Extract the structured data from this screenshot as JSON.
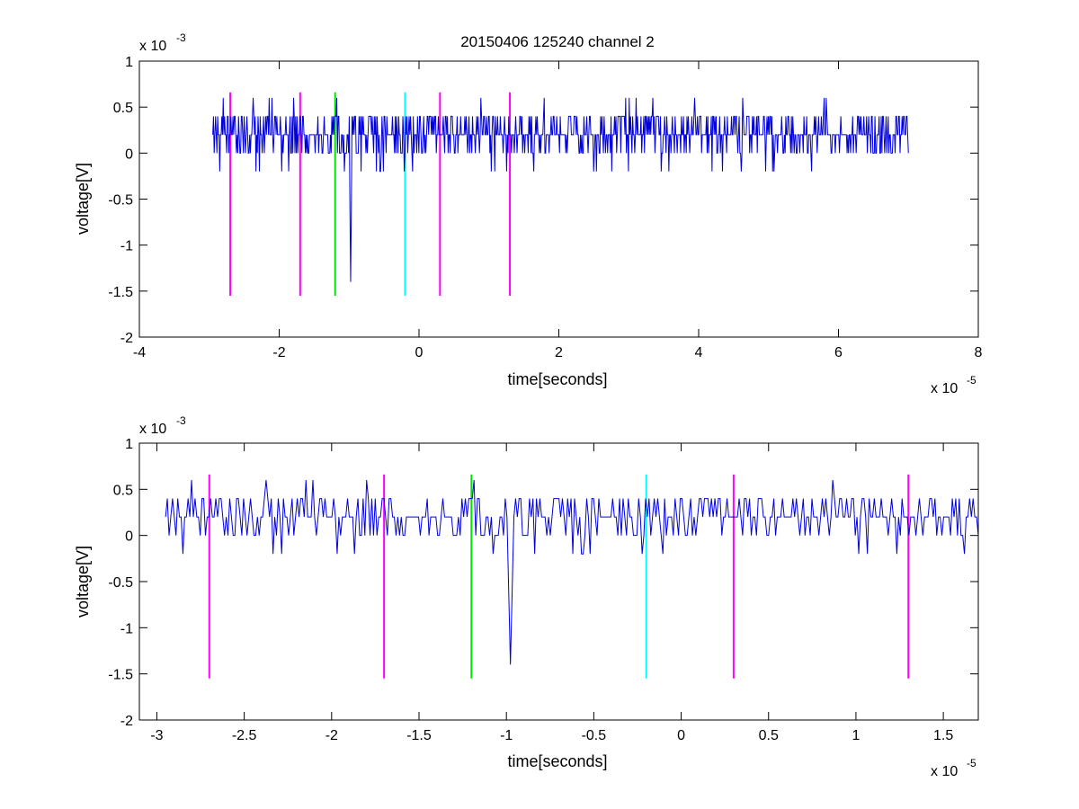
{
  "title": "20150406 125240 channel 2",
  "colors": {
    "signal": "#0000dd",
    "magenta": "#ff00ff",
    "green": "#00e600",
    "cyan": "#00ffff"
  },
  "chart_data": [
    {
      "type": "line",
      "title": "20150406 125240 channel 2",
      "xlabel": "time[seconds]",
      "ylabel": "voltage[V]",
      "x_exponent_label": "x 10",
      "x_exponent": "-5",
      "y_exponent_label": "x 10",
      "y_exponent": "-3",
      "xlim": [
        -4e-05,
        8e-05
      ],
      "ylim": [
        -0.002,
        0.001
      ],
      "x_ticks": [
        -4e-05,
        -2e-05,
        0,
        2e-05,
        4e-05,
        6e-05,
        8e-05
      ],
      "x_tick_labels": [
        "-4",
        "-2",
        "0",
        "2",
        "4",
        "6",
        "8"
      ],
      "y_ticks": [
        -0.002,
        -0.0015,
        -0.001,
        -0.0005,
        0,
        0.0005,
        0.001
      ],
      "y_tick_labels": [
        "-2",
        "-1.5",
        "-1",
        "-0.5",
        "0",
        "0.5",
        "1"
      ],
      "grid": false,
      "signal": {
        "x_start": -2.95e-05,
        "x_end": 7e-05,
        "baseline": 0.0002,
        "quantum": 0.0002,
        "samples": 1000,
        "spike_at": -9.8e-06,
        "spike_min": -0.0014
      },
      "markers": [
        {
          "x": -2.7e-05,
          "color": "magenta",
          "y_from": -0.00155,
          "y_to": 0.00066
        },
        {
          "x": -1.7e-05,
          "color": "magenta",
          "y_from": -0.00155,
          "y_to": 0.00066
        },
        {
          "x": -1.2e-05,
          "color": "green",
          "y_from": -0.00155,
          "y_to": 0.00066
        },
        {
          "x": -2e-06,
          "color": "cyan",
          "y_from": -0.00155,
          "y_to": 0.00066
        },
        {
          "x": 3e-06,
          "color": "magenta",
          "y_from": -0.00155,
          "y_to": 0.00066
        },
        {
          "x": 1.3e-05,
          "color": "magenta",
          "y_from": -0.00155,
          "y_to": 0.00066
        }
      ]
    },
    {
      "type": "line",
      "xlabel": "time[seconds]",
      "ylabel": "voltage[V]",
      "x_exponent_label": "x 10",
      "x_exponent": "-5",
      "y_exponent_label": "x 10",
      "y_exponent": "-3",
      "xlim": [
        -3.1e-05,
        1.7e-05
      ],
      "ylim": [
        -0.002,
        0.001
      ],
      "x_ticks": [
        -3e-05,
        -2.5e-05,
        -2e-05,
        -1.5e-05,
        -1e-05,
        -5e-06,
        0,
        5e-06,
        1e-05,
        1.5e-05
      ],
      "x_tick_labels": [
        "-3",
        "-2.5",
        "-2",
        "-1.5",
        "-1",
        "-0.5",
        "0",
        "0.5",
        "1",
        "1.5"
      ],
      "y_ticks": [
        -0.002,
        -0.0015,
        -0.001,
        -0.0005,
        0,
        0.0005,
        0.001
      ],
      "y_tick_labels": [
        "-2",
        "-1.5",
        "-1",
        "-0.5",
        "0",
        "0.5",
        "1"
      ],
      "grid": false,
      "signal": {
        "x_start": -2.95e-05,
        "x_end": 1.7e-05,
        "baseline": 0.0002,
        "quantum": 0.0002,
        "samples": 470,
        "spike_at": -9.8e-06,
        "spike_min": -0.0014
      },
      "markers": [
        {
          "x": -2.7e-05,
          "color": "magenta",
          "y_from": -0.00155,
          "y_to": 0.00066
        },
        {
          "x": -1.7e-05,
          "color": "magenta",
          "y_from": -0.00155,
          "y_to": 0.00066
        },
        {
          "x": -1.2e-05,
          "color": "green",
          "y_from": -0.00155,
          "y_to": 0.00066
        },
        {
          "x": -2e-06,
          "color": "cyan",
          "y_from": -0.00155,
          "y_to": 0.00066
        },
        {
          "x": 3e-06,
          "color": "magenta",
          "y_from": -0.00155,
          "y_to": 0.00066
        },
        {
          "x": 1.3e-05,
          "color": "magenta",
          "y_from": -0.00155,
          "y_to": 0.00066
        }
      ]
    }
  ]
}
